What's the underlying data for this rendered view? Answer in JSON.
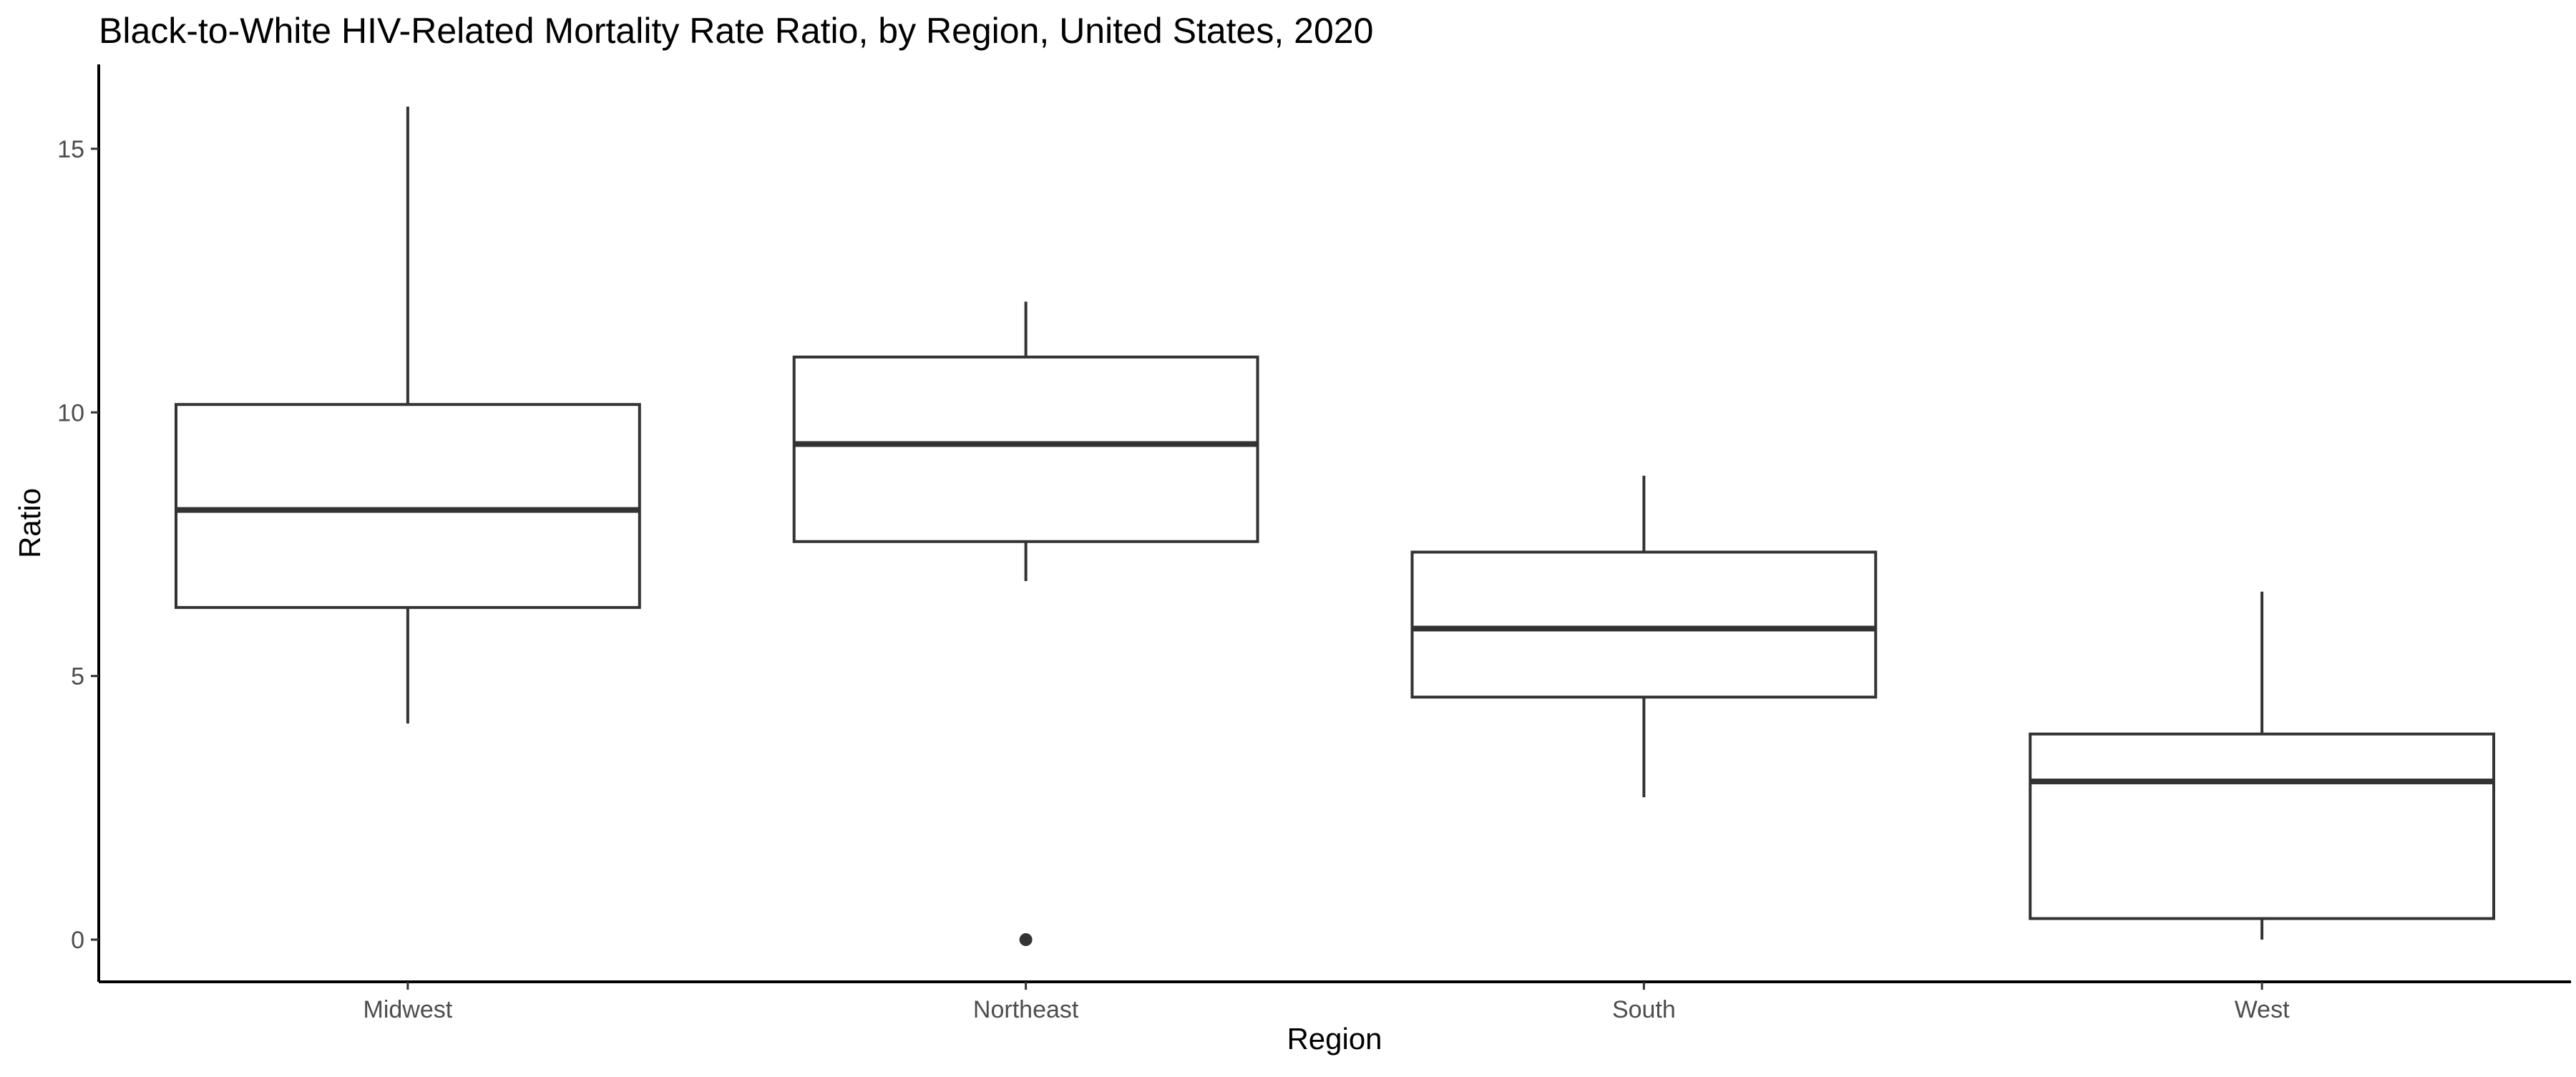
{
  "chart_data": {
    "type": "boxplot",
    "title": "Black-to-White HIV-Related Mortality Rate Ratio, by Region, United States, 2020",
    "xlabel": "Region",
    "ylabel": "Ratio",
    "categories": [
      "Midwest",
      "Northeast",
      "South",
      "West"
    ],
    "yticks": [
      0,
      5,
      10,
      15
    ],
    "ylim": [
      -0.8,
      16.6
    ],
    "grid": false,
    "boxes": [
      {
        "category": "Midwest",
        "whisker_low": 4.1,
        "q1": 6.3,
        "median": 8.15,
        "q3": 10.15,
        "whisker_high": 15.8,
        "outliers": []
      },
      {
        "category": "Northeast",
        "whisker_low": 6.8,
        "q1": 7.55,
        "median": 9.4,
        "q3": 11.05,
        "whisker_high": 12.1,
        "outliers": [
          0
        ]
      },
      {
        "category": "South",
        "whisker_low": 2.7,
        "q1": 4.6,
        "median": 5.9,
        "q3": 7.35,
        "whisker_high": 8.8,
        "outliers": []
      },
      {
        "category": "West",
        "whisker_low": 0.0,
        "q1": 0.4,
        "median": 3.0,
        "q3": 3.9,
        "whisker_high": 6.6,
        "outliers": []
      }
    ]
  }
}
